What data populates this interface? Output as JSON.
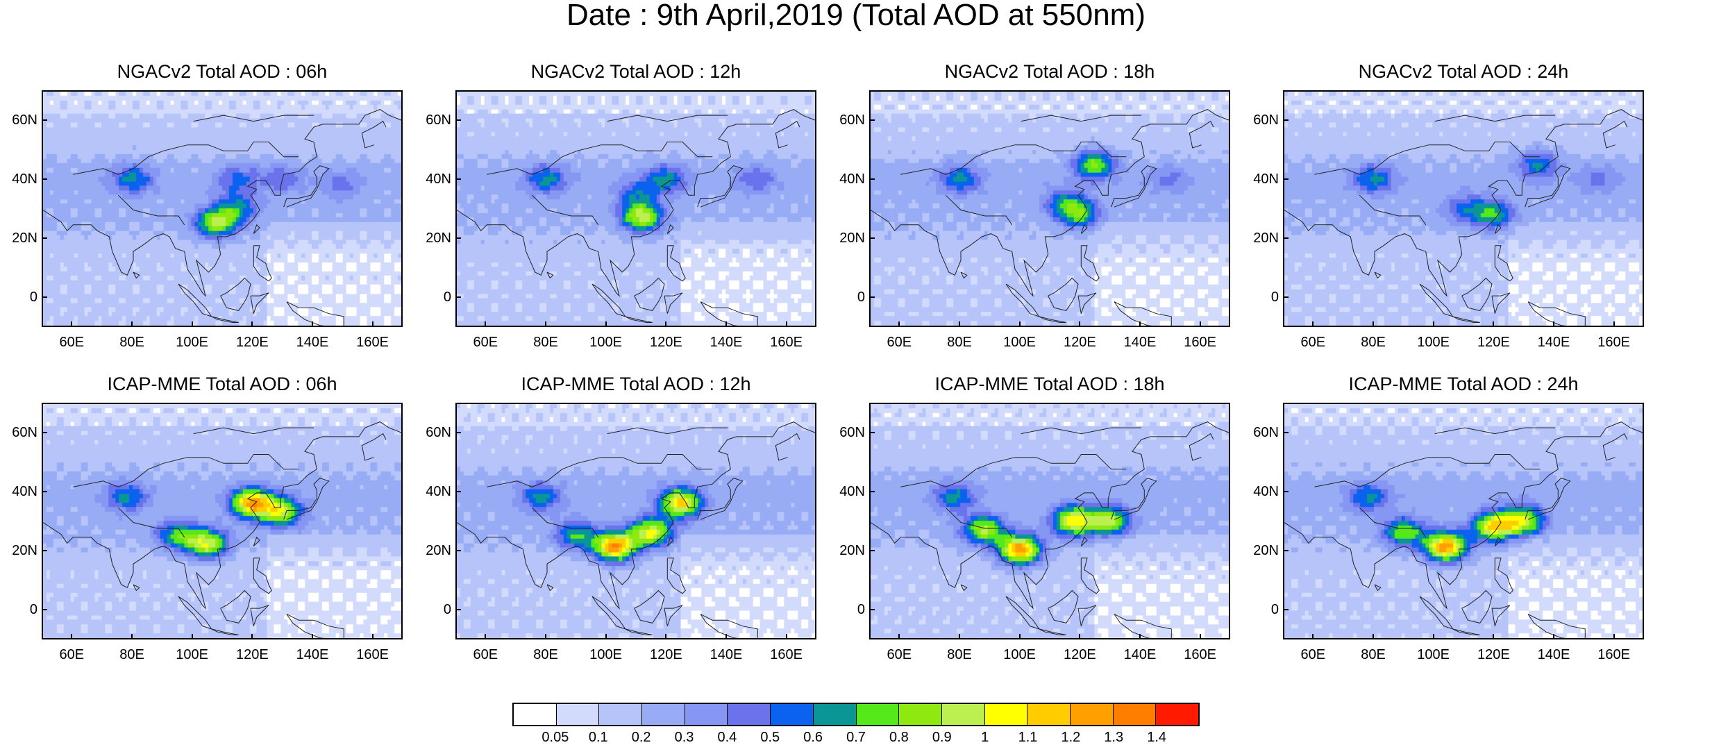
{
  "title": "Date : 9th April,2019 (Total AOD at 550nm)",
  "panels": [
    {
      "title": "NGACv2 Total AOD : 06h",
      "model": "ngac",
      "hour": 6
    },
    {
      "title": "NGACv2 Total AOD : 12h",
      "model": "ngac",
      "hour": 12
    },
    {
      "title": "NGACv2 Total AOD : 18h",
      "model": "ngac",
      "hour": 18
    },
    {
      "title": "NGACv2 Total AOD : 24h",
      "model": "ngac",
      "hour": 24
    },
    {
      "title": "ICAP-MME Total AOD : 06h",
      "model": "icap",
      "hour": 6
    },
    {
      "title": "ICAP-MME Total AOD : 12h",
      "model": "icap",
      "hour": 12
    },
    {
      "title": "ICAP-MME Total AOD : 18h",
      "model": "icap",
      "hour": 18
    },
    {
      "title": "ICAP-MME Total AOD : 24h",
      "model": "icap",
      "hour": 24
    }
  ],
  "chart_data": {
    "type": "heatmap",
    "xlim": [
      50,
      170
    ],
    "ylim": [
      -10,
      70
    ],
    "xticks": [
      "60E",
      "80E",
      "100E",
      "120E",
      "140E",
      "160E"
    ],
    "xtick_values": [
      60,
      80,
      100,
      120,
      140,
      160
    ],
    "yticks": [
      "0",
      "20N",
      "40N",
      "60N"
    ],
    "ytick_values": [
      0,
      20,
      40,
      60
    ],
    "colorbar": {
      "labels": [
        "0.05",
        "0.1",
        "0.2",
        "0.3",
        "0.4",
        "0.5",
        "0.6",
        "0.7",
        "0.8",
        "0.9",
        "1",
        "1.1",
        "1.2",
        "1.3",
        "1.4"
      ],
      "levels": [
        0.05,
        0.1,
        0.2,
        0.3,
        0.4,
        0.5,
        0.6,
        0.7,
        0.8,
        0.9,
        1,
        1.1,
        1.2,
        1.3,
        1.4
      ],
      "colors": [
        "#ffffff",
        "#d3dbfc",
        "#b6c4fa",
        "#98acf6",
        "#8597f2",
        "#6a73ec",
        "#0a62ee",
        "#0b9696",
        "#55e81a",
        "#8fe810",
        "#bcf050",
        "#ffff00",
        "#ffcc00",
        "#ffa000",
        "#ff7e00",
        "#ff1a00"
      ]
    },
    "features": {
      "ngac": {
        "6": [
          [
            115,
            30,
            0.5
          ],
          [
            108,
            25,
            0.8
          ],
          [
            80,
            40,
            0.5
          ],
          [
            115,
            40,
            0.4
          ],
          [
            130,
            40,
            0.35
          ],
          [
            150,
            38,
            0.3
          ]
        ],
        "12": [
          [
            112,
            27,
            0.85
          ],
          [
            120,
            40,
            0.5
          ],
          [
            80,
            40,
            0.5
          ],
          [
            150,
            40,
            0.35
          ],
          [
            110,
            35,
            0.4
          ]
        ],
        "18": [
          [
            125,
            45,
            0.7
          ],
          [
            120,
            28,
            0.6
          ],
          [
            80,
            40,
            0.5
          ],
          [
            150,
            40,
            0.3
          ],
          [
            115,
            32,
            0.45
          ]
        ],
        "24": [
          [
            120,
            28,
            0.6
          ],
          [
            135,
            45,
            0.5
          ],
          [
            80,
            40,
            0.5
          ],
          [
            155,
            40,
            0.3
          ],
          [
            110,
            30,
            0.4
          ]
        ]
      },
      "icap": {
        "6": [
          [
            120,
            36,
            1.1
          ],
          [
            105,
            22,
            0.9
          ],
          [
            78,
            38,
            0.5
          ],
          [
            95,
            25,
            0.6
          ],
          [
            130,
            33,
            0.8
          ]
        ],
        "12": [
          [
            125,
            36,
            1.0
          ],
          [
            103,
            21,
            1.2
          ],
          [
            115,
            26,
            0.9
          ],
          [
            78,
            38,
            0.5
          ],
          [
            90,
            25,
            0.6
          ]
        ],
        "18": [
          [
            100,
            20,
            1.2
          ],
          [
            118,
            30,
            0.95
          ],
          [
            88,
            27,
            0.8
          ],
          [
            130,
            30,
            0.8
          ],
          [
            78,
            38,
            0.5
          ]
        ],
        "24": [
          [
            104,
            21,
            1.2
          ],
          [
            120,
            28,
            0.95
          ],
          [
            130,
            30,
            0.85
          ],
          [
            90,
            26,
            0.7
          ],
          [
            78,
            38,
            0.5
          ]
        ]
      }
    }
  }
}
